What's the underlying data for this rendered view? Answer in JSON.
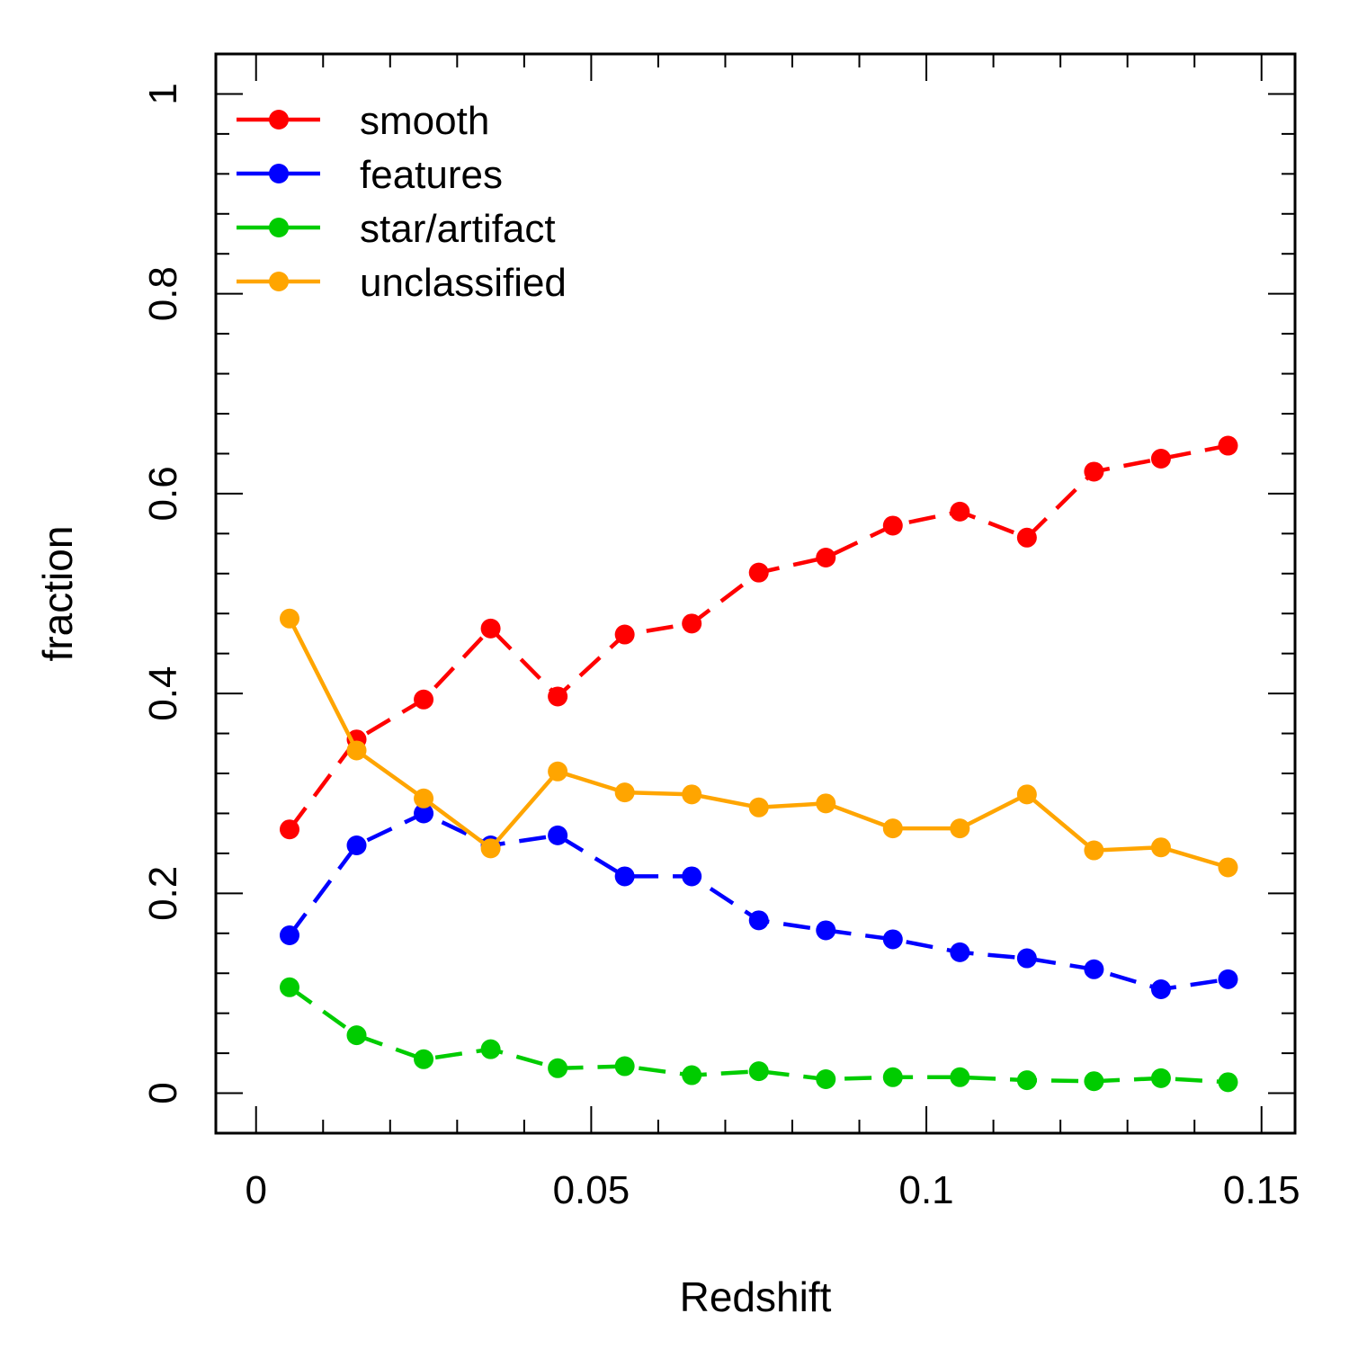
{
  "chart_data": {
    "type": "line",
    "title": "",
    "xlabel": "Redshift",
    "ylabel": "fraction",
    "xlim": [
      -0.006,
      0.155
    ],
    "ylim": [
      -0.04,
      1.04
    ],
    "x_ticks": [
      0,
      0.05,
      0.1,
      0.15
    ],
    "x_tick_labels": [
      "0",
      "0.05",
      "0.1",
      "0.15"
    ],
    "x_minor_step": 0.01,
    "y_ticks": [
      0,
      0.2,
      0.4,
      0.6,
      0.8,
      1
    ],
    "y_tick_labels": [
      "0",
      "0.2",
      "0.4",
      "0.6",
      "0.8",
      "1"
    ],
    "y_minor_step": 0.04,
    "grid": false,
    "legend_position": "top-left",
    "x": [
      0.005,
      0.015,
      0.025,
      0.035,
      0.045,
      0.055,
      0.065,
      0.075,
      0.085,
      0.095,
      0.105,
      0.115,
      0.125,
      0.135,
      0.145
    ],
    "series": [
      {
        "name": "smooth",
        "color": "#ff0000",
        "line_style": "dashed",
        "values": [
          0.264,
          0.354,
          0.394,
          0.465,
          0.397,
          0.459,
          0.47,
          0.521,
          0.536,
          0.568,
          0.582,
          0.556,
          0.622,
          0.635,
          0.648
        ]
      },
      {
        "name": "features",
        "color": "#0000ff",
        "line_style": "dashed",
        "values": [
          0.158,
          0.248,
          0.28,
          0.248,
          0.258,
          0.217,
          0.217,
          0.173,
          0.163,
          0.154,
          0.141,
          0.135,
          0.124,
          0.104,
          0.114
        ]
      },
      {
        "name": "star/artifact",
        "color": "#00cc00",
        "line_style": "dashed",
        "values": [
          0.106,
          0.058,
          0.034,
          0.044,
          0.025,
          0.027,
          0.018,
          0.022,
          0.014,
          0.016,
          0.016,
          0.013,
          0.012,
          0.015,
          0.011
        ]
      },
      {
        "name": "unclassified",
        "color": "#ffa500",
        "line_style": "solid",
        "values": [
          0.475,
          0.343,
          0.295,
          0.245,
          0.322,
          0.301,
          0.299,
          0.286,
          0.29,
          0.265,
          0.265,
          0.299,
          0.243,
          0.246,
          0.226
        ]
      }
    ]
  }
}
